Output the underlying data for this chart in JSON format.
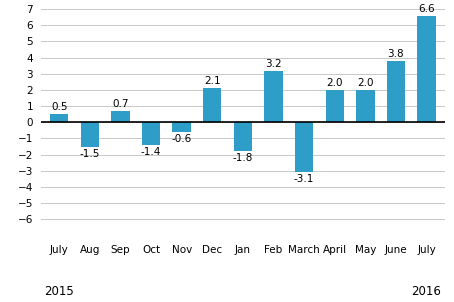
{
  "categories": [
    "July",
    "Aug",
    "Sep",
    "Oct",
    "Nov",
    "Dec",
    "Jan",
    "Feb",
    "March",
    "April",
    "May",
    "June",
    "July"
  ],
  "values": [
    0.5,
    -1.5,
    0.7,
    -1.4,
    -0.6,
    2.1,
    -1.8,
    3.2,
    -3.1,
    2.0,
    2.0,
    3.8,
    6.6
  ],
  "bar_color": "#2E9DC8",
  "ylim": [
    -7,
    7
  ],
  "yticks": [
    -6,
    -5,
    -4,
    -3,
    -2,
    -1,
    0,
    1,
    2,
    3,
    4,
    5,
    6,
    7
  ],
  "label_fontsize": 7.5,
  "value_fontsize": 7.5,
  "year_fontsize": 8.5,
  "background_color": "#ffffff",
  "grid_color": "#c8c8c8",
  "year_2015_idx": 0,
  "year_2016_idx": 12
}
